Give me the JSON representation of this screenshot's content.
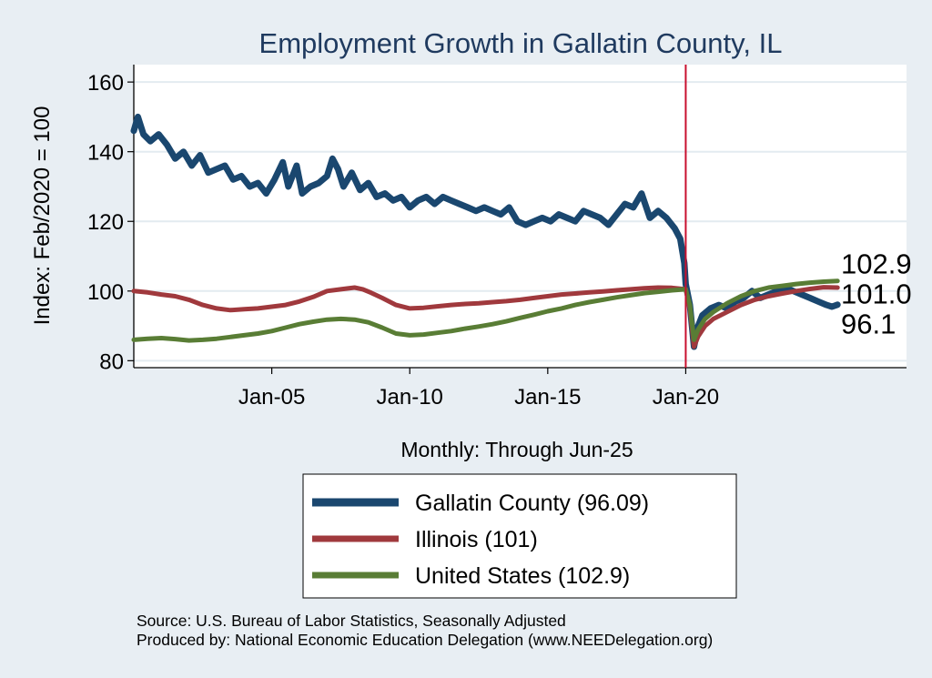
{
  "chart_data": {
    "type": "line",
    "title": "Employment Growth in Gallatin  County, IL",
    "ylabel": "Index: Feb/2020 = 100",
    "xlabel": "Monthly: Through Jun-25",
    "ylim": [
      78,
      165
    ],
    "xlim": [
      2000.0,
      2028.0
    ],
    "yticks": [
      80,
      100,
      120,
      140,
      160
    ],
    "xticks": [
      {
        "value": 2005.0,
        "label": "Jan-05"
      },
      {
        "value": 2010.0,
        "label": "Jan-10"
      },
      {
        "value": 2015.0,
        "label": "Jan-15"
      },
      {
        "value": 2020.0,
        "label": "Jan-20"
      }
    ],
    "reference_line": {
      "x": 2020.0,
      "color": "#c8102e"
    },
    "grid": true,
    "legend_position": "bottom",
    "series": [
      {
        "name": "Gallatin  County",
        "legend": "Gallatin  County (96.09)",
        "end_label": "96.1",
        "color": "#1a476f",
        "width": 7,
        "points": [
          [
            2000.0,
            146
          ],
          [
            2000.15,
            150
          ],
          [
            2000.35,
            145
          ],
          [
            2000.6,
            143
          ],
          [
            2000.9,
            145
          ],
          [
            2001.2,
            142
          ],
          [
            2001.5,
            138
          ],
          [
            2001.8,
            140
          ],
          [
            2002.1,
            136
          ],
          [
            2002.4,
            139
          ],
          [
            2002.7,
            134
          ],
          [
            2003.0,
            135
          ],
          [
            2003.3,
            136
          ],
          [
            2003.6,
            132
          ],
          [
            2003.9,
            133
          ],
          [
            2004.2,
            130
          ],
          [
            2004.5,
            131
          ],
          [
            2004.8,
            128
          ],
          [
            2005.1,
            132
          ],
          [
            2005.4,
            137
          ],
          [
            2005.6,
            130
          ],
          [
            2005.9,
            136
          ],
          [
            2006.1,
            128
          ],
          [
            2006.4,
            130
          ],
          [
            2006.7,
            131
          ],
          [
            2007.0,
            133
          ],
          [
            2007.2,
            138
          ],
          [
            2007.4,
            135
          ],
          [
            2007.6,
            130
          ],
          [
            2007.9,
            134
          ],
          [
            2008.2,
            129
          ],
          [
            2008.5,
            131
          ],
          [
            2008.8,
            127
          ],
          [
            2009.1,
            128
          ],
          [
            2009.4,
            126
          ],
          [
            2009.7,
            127
          ],
          [
            2010.0,
            124
          ],
          [
            2010.3,
            126
          ],
          [
            2010.6,
            127
          ],
          [
            2010.9,
            125
          ],
          [
            2011.2,
            127
          ],
          [
            2011.5,
            126
          ],
          [
            2011.8,
            125
          ],
          [
            2012.1,
            124
          ],
          [
            2012.4,
            123
          ],
          [
            2012.7,
            124
          ],
          [
            2013.0,
            123
          ],
          [
            2013.3,
            122
          ],
          [
            2013.6,
            124
          ],
          [
            2013.9,
            120
          ],
          [
            2014.2,
            119
          ],
          [
            2014.5,
            120
          ],
          [
            2014.8,
            121
          ],
          [
            2015.1,
            120
          ],
          [
            2015.4,
            122
          ],
          [
            2015.7,
            121
          ],
          [
            2016.0,
            120
          ],
          [
            2016.3,
            123
          ],
          [
            2016.6,
            122
          ],
          [
            2016.9,
            121
          ],
          [
            2017.2,
            119
          ],
          [
            2017.5,
            122
          ],
          [
            2017.8,
            125
          ],
          [
            2018.1,
            124
          ],
          [
            2018.4,
            128
          ],
          [
            2018.7,
            121
          ],
          [
            2019.0,
            123
          ],
          [
            2019.3,
            121
          ],
          [
            2019.6,
            118
          ],
          [
            2019.8,
            115
          ],
          [
            2019.95,
            108
          ],
          [
            2020.0,
            102
          ],
          [
            2020.15,
            96
          ],
          [
            2020.3,
            84
          ],
          [
            2020.45,
            90
          ],
          [
            2020.6,
            93
          ],
          [
            2020.9,
            95
          ],
          [
            2021.2,
            96
          ],
          [
            2021.5,
            95
          ],
          [
            2021.8,
            97
          ],
          [
            2022.1,
            98
          ],
          [
            2022.4,
            100
          ],
          [
            2022.7,
            98
          ],
          [
            2023.0,
            99
          ],
          [
            2023.3,
            100
          ],
          [
            2023.6,
            101
          ],
          [
            2023.9,
            100
          ],
          [
            2024.2,
            99
          ],
          [
            2024.5,
            98
          ],
          [
            2024.8,
            97
          ],
          [
            2025.1,
            96
          ],
          [
            2025.3,
            95.5
          ],
          [
            2025.5,
            96.09
          ]
        ]
      },
      {
        "name": "Illinois",
        "legend": "Illinois (101)",
        "end_label": "101.0",
        "color": "#a0393d",
        "width": 5,
        "points": [
          [
            2000.0,
            100
          ],
          [
            2000.5,
            99.6
          ],
          [
            2001.0,
            99.0
          ],
          [
            2001.5,
            98.5
          ],
          [
            2002.0,
            97.5
          ],
          [
            2002.5,
            96.0
          ],
          [
            2003.0,
            95.0
          ],
          [
            2003.5,
            94.5
          ],
          [
            2004.0,
            94.8
          ],
          [
            2004.5,
            95.0
          ],
          [
            2005.0,
            95.5
          ],
          [
            2005.5,
            96.0
          ],
          [
            2006.0,
            97.0
          ],
          [
            2006.5,
            98.3
          ],
          [
            2007.0,
            100.0
          ],
          [
            2007.5,
            100.5
          ],
          [
            2008.0,
            101.0
          ],
          [
            2008.3,
            100.5
          ],
          [
            2008.6,
            99.5
          ],
          [
            2009.0,
            98.0
          ],
          [
            2009.5,
            96.0
          ],
          [
            2010.0,
            95.0
          ],
          [
            2010.5,
            95.2
          ],
          [
            2011.0,
            95.6
          ],
          [
            2011.5,
            96.0
          ],
          [
            2012.0,
            96.3
          ],
          [
            2012.5,
            96.5
          ],
          [
            2013.0,
            96.8
          ],
          [
            2013.5,
            97.1
          ],
          [
            2014.0,
            97.5
          ],
          [
            2014.5,
            98.0
          ],
          [
            2015.0,
            98.5
          ],
          [
            2015.5,
            99.0
          ],
          [
            2016.0,
            99.3
          ],
          [
            2016.5,
            99.6
          ],
          [
            2017.0,
            99.9
          ],
          [
            2017.5,
            100.2
          ],
          [
            2018.0,
            100.5
          ],
          [
            2018.5,
            100.8
          ],
          [
            2019.0,
            101.0
          ],
          [
            2019.5,
            100.9
          ],
          [
            2020.0,
            100.5
          ],
          [
            2020.15,
            95
          ],
          [
            2020.3,
            84
          ],
          [
            2020.45,
            87
          ],
          [
            2020.7,
            90
          ],
          [
            2021.0,
            92
          ],
          [
            2021.5,
            94
          ],
          [
            2022.0,
            96
          ],
          [
            2022.5,
            97.5
          ],
          [
            2023.0,
            98.5
          ],
          [
            2023.5,
            99.3
          ],
          [
            2024.0,
            100.0
          ],
          [
            2024.5,
            100.6
          ],
          [
            2025.0,
            101.1
          ],
          [
            2025.5,
            101.0
          ]
        ]
      },
      {
        "name": "United States",
        "legend": "United States (102.9)",
        "end_label": "102.9",
        "color": "#597d35",
        "width": 5,
        "points": [
          [
            2000.0,
            86.0
          ],
          [
            2000.5,
            86.3
          ],
          [
            2001.0,
            86.5
          ],
          [
            2001.5,
            86.2
          ],
          [
            2002.0,
            85.8
          ],
          [
            2002.5,
            86.0
          ],
          [
            2003.0,
            86.3
          ],
          [
            2003.5,
            86.8
          ],
          [
            2004.0,
            87.3
          ],
          [
            2004.5,
            87.8
          ],
          [
            2005.0,
            88.5
          ],
          [
            2005.5,
            89.5
          ],
          [
            2006.0,
            90.5
          ],
          [
            2006.5,
            91.2
          ],
          [
            2007.0,
            91.8
          ],
          [
            2007.5,
            92.0
          ],
          [
            2008.0,
            91.8
          ],
          [
            2008.5,
            91.0
          ],
          [
            2009.0,
            89.5
          ],
          [
            2009.5,
            87.8
          ],
          [
            2010.0,
            87.3
          ],
          [
            2010.5,
            87.5
          ],
          [
            2011.0,
            88.0
          ],
          [
            2011.5,
            88.5
          ],
          [
            2012.0,
            89.2
          ],
          [
            2012.5,
            89.8
          ],
          [
            2013.0,
            90.5
          ],
          [
            2013.5,
            91.3
          ],
          [
            2014.0,
            92.3
          ],
          [
            2014.5,
            93.2
          ],
          [
            2015.0,
            94.2
          ],
          [
            2015.5,
            95.0
          ],
          [
            2016.0,
            96.0
          ],
          [
            2016.5,
            96.8
          ],
          [
            2017.0,
            97.5
          ],
          [
            2017.5,
            98.2
          ],
          [
            2018.0,
            98.8
          ],
          [
            2018.5,
            99.4
          ],
          [
            2019.0,
            99.8
          ],
          [
            2019.5,
            100.2
          ],
          [
            2020.0,
            100.5
          ],
          [
            2020.15,
            96
          ],
          [
            2020.3,
            86
          ],
          [
            2020.45,
            89
          ],
          [
            2020.7,
            92
          ],
          [
            2021.0,
            94
          ],
          [
            2021.5,
            96.5
          ],
          [
            2022.0,
            98.5
          ],
          [
            2022.5,
            100
          ],
          [
            2023.0,
            101
          ],
          [
            2023.5,
            101.5
          ],
          [
            2024.0,
            102.0
          ],
          [
            2024.5,
            102.4
          ],
          [
            2025.0,
            102.7
          ],
          [
            2025.5,
            102.9
          ]
        ]
      }
    ],
    "source_lines": [
      "Source: U.S. Bureau of Labor Statistics, Seasonally Adjusted",
      "Produced by: National Economic Education Delegation (www.NEEDelegation.org)"
    ]
  }
}
